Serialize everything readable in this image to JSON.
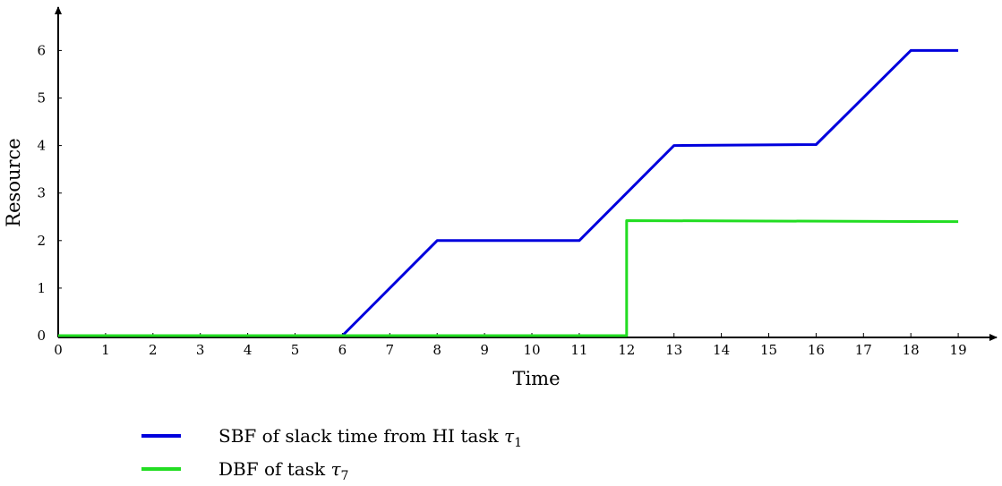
{
  "chart_data": {
    "type": "line",
    "title": "",
    "xlabel": "Time",
    "ylabel": "Resource",
    "x_ticks": [
      0,
      1,
      2,
      3,
      4,
      5,
      6,
      7,
      8,
      9,
      10,
      11,
      12,
      13,
      14,
      15,
      16,
      17,
      18,
      19
    ],
    "x_tick_labels": [
      "0",
      "1",
      "2",
      "3",
      "4",
      "5",
      "6",
      "7",
      "8",
      "9",
      "10",
      "11",
      "12",
      "13",
      "14",
      "15",
      "16",
      "17",
      "18",
      "19"
    ],
    "y_ticks": [
      0,
      1,
      2,
      3,
      4,
      5,
      6
    ],
    "y_tick_labels": [
      "0",
      "1",
      "2",
      "3",
      "4",
      "5",
      "6"
    ],
    "xlim": [
      0,
      20
    ],
    "ylim": [
      0,
      6.8
    ],
    "grid": false,
    "legend_position": "bottom",
    "series": [
      {
        "name": "SBF of slack time from HI task τ1",
        "legend_main": "SBF of slack time from HI task ",
        "legend_symbol": "τ",
        "legend_sub": "1",
        "color": "#0000dd",
        "points": [
          [
            0,
            0
          ],
          [
            6,
            0
          ],
          [
            8,
            2
          ],
          [
            11,
            2
          ],
          [
            13,
            4
          ],
          [
            16,
            4.02
          ],
          [
            18,
            6
          ],
          [
            19,
            6
          ]
        ]
      },
      {
        "name": "DBF of task τ7",
        "legend_main": "DBF of task ",
        "legend_symbol": "τ",
        "legend_sub": "7",
        "color": "#22dd22",
        "points": [
          [
            0,
            0
          ],
          [
            12,
            0
          ],
          [
            12,
            2.42
          ],
          [
            19,
            2.4
          ]
        ]
      }
    ]
  }
}
